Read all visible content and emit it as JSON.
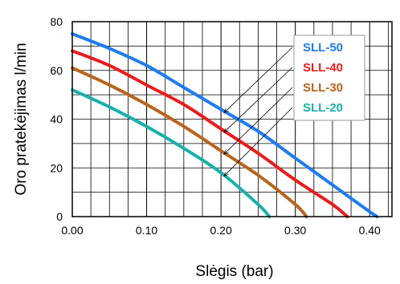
{
  "chart_data": {
    "type": "line",
    "title": "",
    "xlabel": "Slėgis (bar)",
    "ylabel": "Oro pratekėjimas l/min",
    "xlim": [
      0,
      0.43
    ],
    "ylim": [
      0,
      80
    ],
    "grid": true,
    "legend_position": "right",
    "x_ticks": [
      "0.00",
      "0.10",
      "0.20",
      "0.30",
      "0.40"
    ],
    "y_ticks": [
      "0",
      "20",
      "40",
      "60",
      "80"
    ],
    "series": [
      {
        "name": "SLL-50",
        "color": "#1e7cf0",
        "x": [
          0,
          0.05,
          0.1,
          0.15,
          0.2,
          0.25,
          0.3,
          0.35,
          0.4,
          0.41
        ],
        "y": [
          75,
          69,
          62,
          53,
          44,
          35,
          24,
          13,
          2,
          0
        ]
      },
      {
        "name": "SLL-40",
        "color": "#ea1c1c",
        "x": [
          0,
          0.05,
          0.1,
          0.15,
          0.2,
          0.25,
          0.3,
          0.35,
          0.37
        ],
        "y": [
          68,
          62,
          54,
          46,
          36,
          26,
          15,
          5,
          0
        ]
      },
      {
        "name": "SLL-30",
        "color": "#b8641c",
        "x": [
          0,
          0.05,
          0.1,
          0.15,
          0.2,
          0.25,
          0.3,
          0.315
        ],
        "y": [
          61,
          54,
          46,
          37,
          27,
          17,
          5,
          0
        ]
      },
      {
        "name": "SLL-20",
        "color": "#18b0ac",
        "x": [
          0,
          0.05,
          0.1,
          0.15,
          0.2,
          0.25,
          0.265
        ],
        "y": [
          52,
          45,
          37,
          28,
          18,
          5,
          0
        ]
      }
    ],
    "annotation_arrows_target_x": 0.2
  }
}
